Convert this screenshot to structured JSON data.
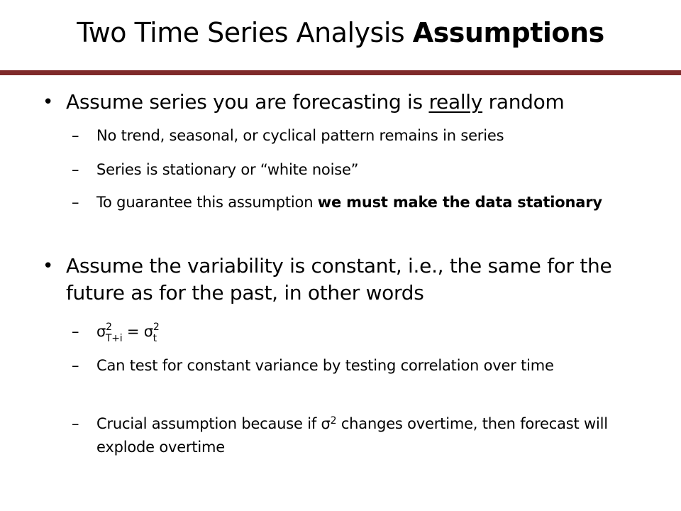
{
  "title": {
    "regular": "Two Time Series Analysis ",
    "bold": "Assumptions"
  },
  "colors": {
    "rule": "#7f2a2a"
  },
  "bullets": [
    {
      "marker": "•",
      "pre": "Assume series you are forecasting is ",
      "underlined": "really",
      "post": " random",
      "subs": [
        {
          "marker": "–",
          "text": "No trend, seasonal, or cyclical pattern remains in series"
        },
        {
          "marker": "–",
          "text": "Series is stationary or “white noise”"
        },
        {
          "marker": "–",
          "pre": "To guarantee this assumption ",
          "bold": "we must make the data stationary"
        }
      ]
    },
    {
      "marker": "•",
      "text": "Assume the variability is constant, i.e., the same for the future as for the past, in other words",
      "subs": [
        {
          "marker": "–",
          "formula": {
            "sigma": "σ",
            "sup": "2",
            "sub_left": "T+i",
            "eq": " = ",
            "sub_right": "t"
          }
        },
        {
          "marker": "–",
          "text": "Can test for constant variance by testing correlation over time"
        },
        {
          "marker": "–",
          "pre": "Crucial assumption because if σ",
          "sup": "2",
          "post": " changes overtime, then forecast will explode overtime"
        }
      ]
    }
  ]
}
